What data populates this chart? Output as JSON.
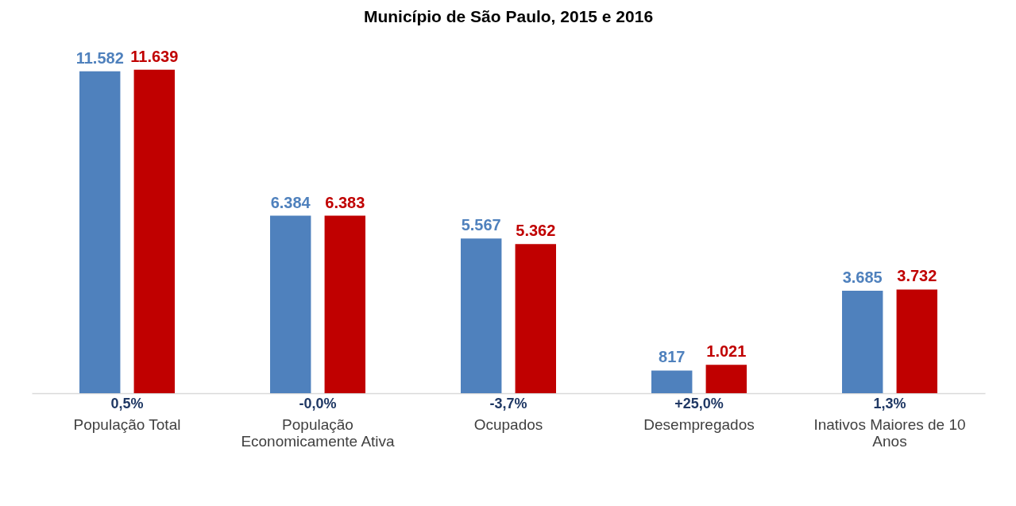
{
  "chart_data": {
    "type": "bar",
    "title": "Município de São Paulo, 2015 e 2016",
    "categories": [
      "População Total",
      "População Economicamente Ativa",
      "Ocupados",
      "Desempregados",
      "Inativos Maiores de 10 Anos"
    ],
    "series": [
      {
        "color": "#4f81bd",
        "values": [
          11582,
          6384,
          5567,
          817,
          3685
        ],
        "value_labels": [
          "11.582",
          "6.384",
          "5.567",
          "817",
          "3.685"
        ]
      },
      {
        "color": "#c00000",
        "values": [
          11639,
          6383,
          5362,
          1021,
          3732
        ],
        "value_labels": [
          "11.639",
          "6.383",
          "5.362",
          "1.021",
          "3.732"
        ]
      }
    ],
    "annotations": [
      "0,5%",
      "-0,0%",
      "-3,7%",
      "+25,0%",
      "1,3%"
    ],
    "grid": false,
    "legend": false
  }
}
